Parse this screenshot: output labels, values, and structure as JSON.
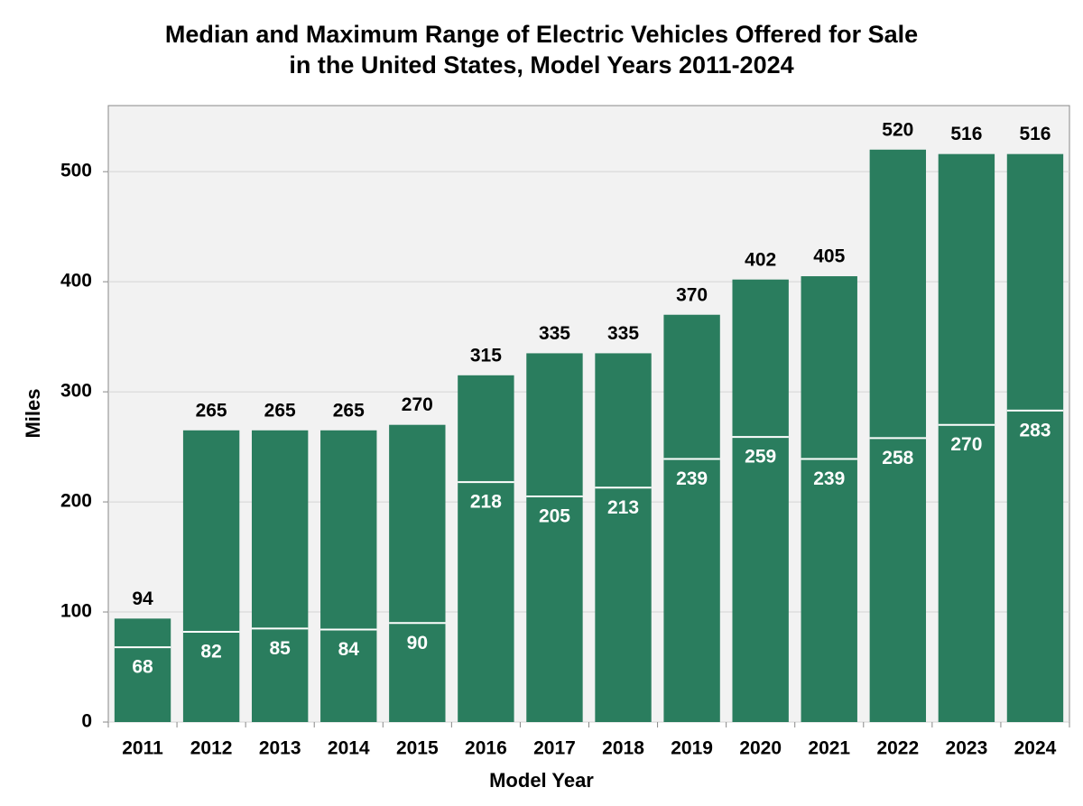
{
  "chart_data": {
    "type": "bar",
    "title": [
      "Median and Maximum Range of Electric Vehicles Offered for Sale",
      "in the United States, Model Years 2011-2024"
    ],
    "x_label": "Model Year",
    "y_label": "Miles",
    "categories": [
      "2011",
      "2012",
      "2013",
      "2014",
      "2015",
      "2016",
      "2017",
      "2018",
      "2019",
      "2020",
      "2021",
      "2022",
      "2023",
      "2024"
    ],
    "series": [
      {
        "color": "#2a7d5e",
        "values": [
          94,
          265,
          265,
          265,
          270,
          315,
          335,
          335,
          370,
          402,
          405,
          520,
          516,
          516
        ]
      },
      {
        "color": "#ffffff",
        "values": [
          68,
          82,
          85,
          84,
          90,
          218,
          205,
          213,
          239,
          259,
          239,
          258,
          270,
          283
        ]
      }
    ],
    "ylim": [
      0,
      560
    ],
    "yticks": [
      0,
      100,
      200,
      300,
      400,
      500
    ],
    "grid": true
  }
}
